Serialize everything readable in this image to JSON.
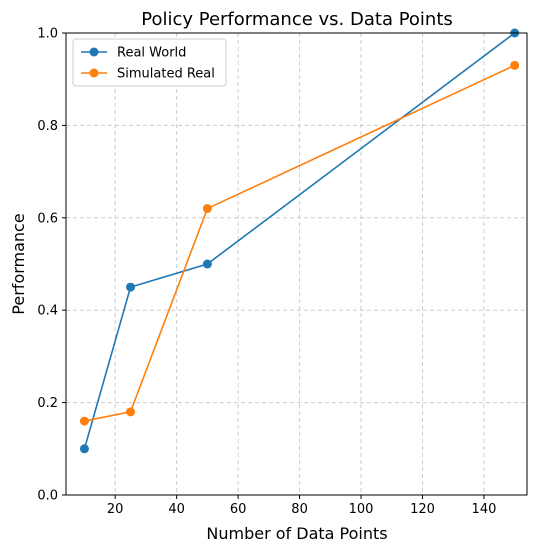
{
  "chart_data": {
    "type": "line",
    "title": "Policy Performance vs. Data Points",
    "xlabel": "Number of Data Points",
    "ylabel": "Performance",
    "xlim": [
      4,
      154
    ],
    "ylim": [
      0,
      1.0
    ],
    "xticks": [
      20,
      40,
      60,
      80,
      100,
      120,
      140
    ],
    "xtick_labels": [
      "20",
      "40",
      "60",
      "80",
      "100",
      "120",
      "140"
    ],
    "yticks": [
      0,
      0.2,
      0.4,
      0.6,
      0.8,
      1.0
    ],
    "ytick_labels": [
      "0.0",
      "0.2",
      "0.4",
      "0.6",
      "0.8",
      "1.0"
    ],
    "grid": true,
    "legend_position": "top-left",
    "x": [
      10,
      25,
      50,
      150
    ],
    "series": [
      {
        "name": "Real World",
        "color": "#1f77b4",
        "values": [
          0.1,
          0.45,
          0.5,
          1.0
        ]
      },
      {
        "name": "Simulated Real",
        "color": "#ff7f0e",
        "values": [
          0.16,
          0.18,
          0.62,
          0.93
        ]
      }
    ]
  }
}
